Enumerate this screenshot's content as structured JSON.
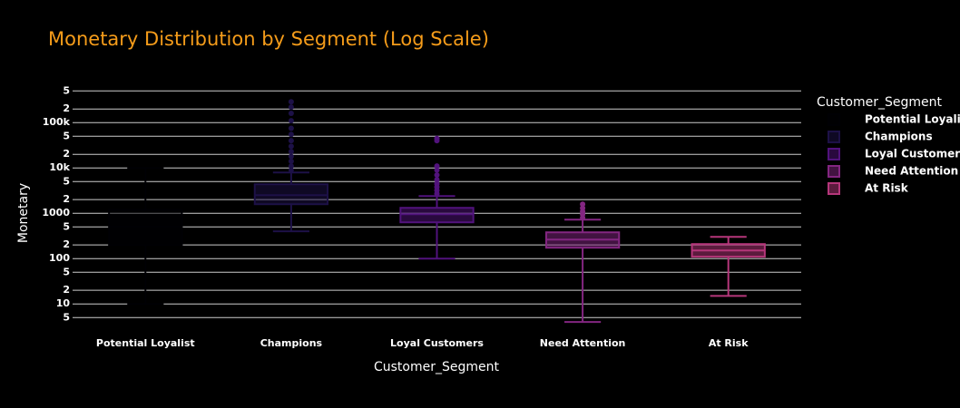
{
  "chart_data": {
    "type": "box",
    "title": "Monetary Distribution by Segment (Log Scale)",
    "x_label": "Customer_Segment",
    "y_label": "Monetary",
    "legend_title": "Customer_Segment",
    "log_y": true,
    "grid": true,
    "legend_position": "right",
    "ylim": [
      3.5,
      700000
    ],
    "yticks": [
      5,
      10,
      {
        "value": 20,
        "label": "2"
      },
      {
        "value": 50,
        "label": "5"
      },
      100,
      {
        "value": 200,
        "label": "2"
      },
      {
        "value": 500,
        "label": "5"
      },
      1000,
      {
        "value": 2000,
        "label": "2"
      },
      {
        "value": 5000,
        "label": "5"
      },
      {
        "value": 10000,
        "label": "10k"
      },
      {
        "value": 20000,
        "label": "2"
      },
      {
        "value": 50000,
        "label": "5"
      },
      {
        "value": 100000,
        "label": "100k"
      },
      {
        "value": 200000,
        "label": "2"
      },
      {
        "value": 500000,
        "label": "5"
      }
    ],
    "series": [
      {
        "name": "Potential Loyalist",
        "color": "#000004",
        "lower": 10,
        "q1": 200,
        "median": 500,
        "q3": 1200,
        "upper": 10000,
        "outliers": []
      },
      {
        "name": "Champions",
        "color": "#1d1147",
        "lower": 400,
        "q1": 1585,
        "median": 2512,
        "q3": 4365,
        "upper": 7943,
        "outliers": [
          9000,
          11000,
          14000,
          18000,
          23000,
          30000,
          40000,
          55000,
          75000,
          110000,
          160000,
          220000,
          288000
        ]
      },
      {
        "name": "Loyal Customers",
        "color": "#51127c",
        "lower": 100,
        "q1": 631,
        "median": 955,
        "q3": 1318,
        "upper": 2400,
        "outliers": [
          2700,
          3200,
          3800,
          4500,
          5500,
          7000,
          9000,
          11000,
          40000,
          45000
        ]
      },
      {
        "name": "Need Attention",
        "color": "#832681",
        "lower": 4,
        "q1": 174,
        "median": 263,
        "q3": 380,
        "upper": 724,
        "outliers": [
          800,
          950,
          1100,
          1300,
          1585
        ]
      },
      {
        "name": "At Risk",
        "color": "#b5367a",
        "lower": 15,
        "q1": 110,
        "median": 151,
        "q3": 209,
        "upper": 302,
        "outliers": []
      }
    ]
  }
}
